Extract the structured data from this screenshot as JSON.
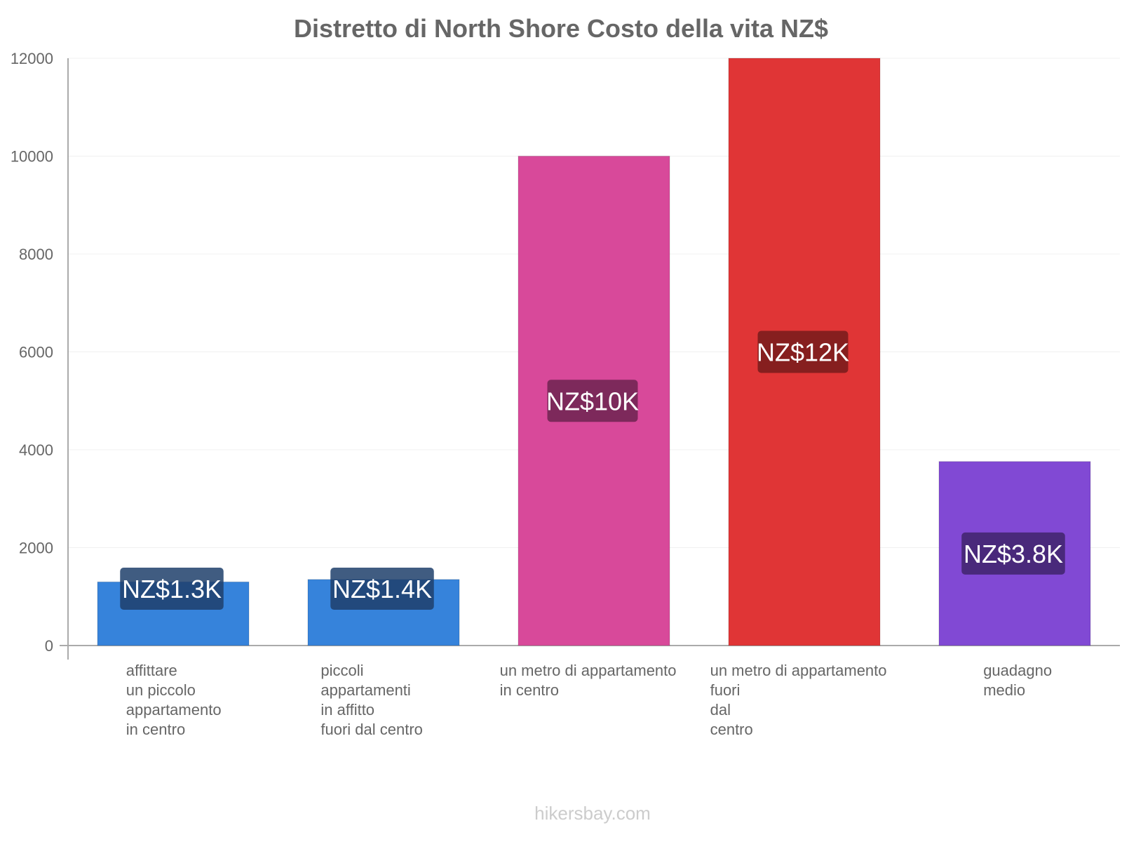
{
  "chart_data": {
    "type": "bar",
    "title": "Distretto di North Shore Costo della vita NZ$",
    "xlabel": "",
    "ylabel": "",
    "ylim": [
      0,
      12000
    ],
    "yticks": [
      0,
      2000,
      4000,
      6000,
      8000,
      10000,
      12000
    ],
    "grid": true,
    "categories": [
      [
        "affittare",
        "un piccolo",
        "appartamento",
        "in centro"
      ],
      [
        "piccoli",
        "appartamenti",
        "in affitto",
        "fuori dal centro"
      ],
      [
        "un metro di appartamento",
        "in centro"
      ],
      [
        "un metro di appartamento",
        "fuori",
        "dal",
        "centro"
      ],
      [
        "guadagno",
        "medio"
      ]
    ],
    "values": [
      1300,
      1350,
      10000,
      12000,
      3760
    ],
    "data_labels": [
      "NZ$1.3K",
      "NZ$1.4K",
      "NZ$10K",
      "NZ$12K",
      "NZ$3.8K"
    ],
    "colors": [
      "#3683db",
      "#3683db",
      "#d8499a",
      "#e03536",
      "#8149d4"
    ],
    "label_bg_colors": [
      "#1e3f6b",
      "#1e3f6b",
      "#6d2350",
      "#751b1b",
      "#40236b"
    ]
  },
  "watermark": "hikersbay.com"
}
